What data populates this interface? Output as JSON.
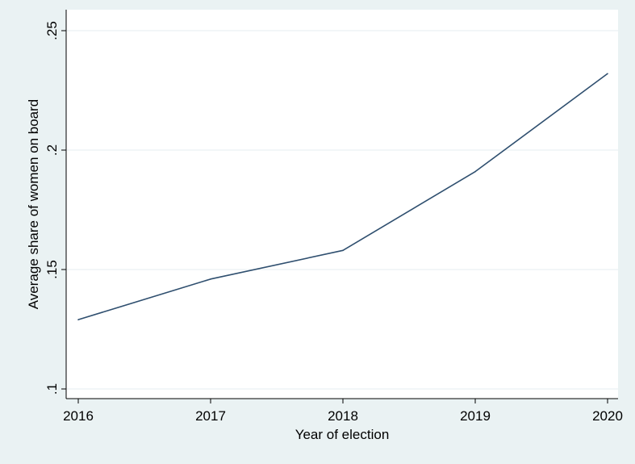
{
  "chart_data": {
    "type": "line",
    "title": "",
    "xlabel": "Year of election",
    "ylabel": "Average share of women on board",
    "x": [
      2016,
      2017,
      2018,
      2019,
      2020
    ],
    "series": [
      {
        "values": [
          0.129,
          0.146,
          0.158,
          0.191,
          0.232
        ]
      }
    ],
    "xlim": [
      2016,
      2020
    ],
    "ylim": [
      0.1,
      0.25
    ],
    "x_ticks": [
      2016,
      2017,
      2018,
      2019,
      2020
    ],
    "x_tick_labels": [
      "2016",
      "2017",
      "2018",
      "2019",
      "2020"
    ],
    "y_ticks": [
      0.1,
      0.15,
      0.2,
      0.25
    ],
    "y_tick_labels": [
      ".1",
      ".15",
      ".2",
      ".25"
    ],
    "grid": true,
    "legend": "none",
    "colors": {
      "background": "#eaf2f3",
      "plot_background": "#ffffff",
      "line": "#2f4f6f",
      "grid": "#e6eef0"
    }
  }
}
